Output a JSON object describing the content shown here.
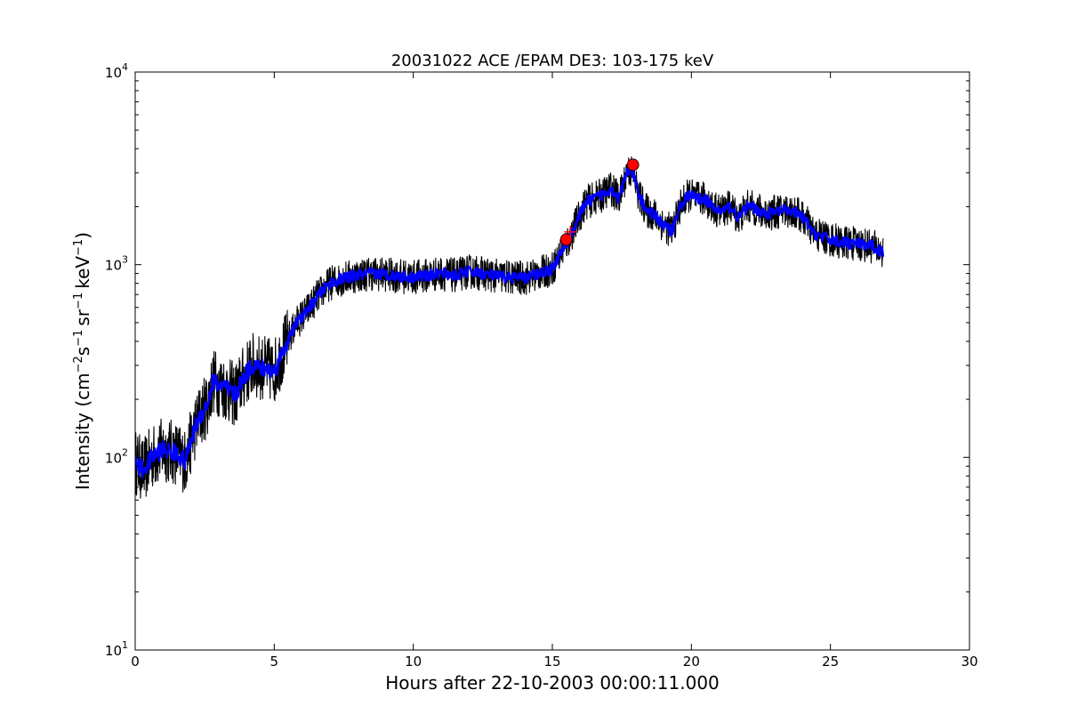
{
  "chart_data": {
    "type": "line",
    "title": "20031022 ACE /EPAM DE3: 103-175 keV",
    "xlabel": "Hours after 22-10-2003 00:00:11.000",
    "ylabel": {
      "prefix": "Intensity (cm",
      "sup1": "−2",
      "mid1": "s",
      "sup2": "−1",
      "mid2": "sr",
      "sup3": "−1",
      "mid3": "keV",
      "sup4": "−1",
      "suffix": ")"
    },
    "xlim": [
      0,
      30
    ],
    "ylim": [
      10,
      10000
    ],
    "yscale": "log",
    "grid": false,
    "x_ticks": [
      0,
      5,
      10,
      15,
      20,
      25,
      30
    ],
    "x_tick_labels": [
      "0",
      "5",
      "10",
      "15",
      "20",
      "25",
      "30"
    ],
    "y_ticks": [
      10,
      100,
      1000,
      10000
    ],
    "y_tick_labels": [
      {
        "base": "10",
        "exp": "1"
      },
      {
        "base": "10",
        "exp": "2"
      },
      {
        "base": "10",
        "exp": "3"
      },
      {
        "base": "10",
        "exp": "4"
      }
    ],
    "series": [
      {
        "role": "raw intensity",
        "color": "#000000",
        "noise": 0.09,
        "x": [
          0,
          0.3,
          0.6,
          1.0,
          1.5,
          1.8,
          2.0,
          2.2,
          2.4,
          2.6,
          2.8,
          3.2,
          3.6,
          3.9,
          4.2,
          4.6,
          5.0,
          5.4,
          5.8,
          6.2,
          6.6,
          7.0,
          7.5,
          8.0,
          8.5,
          9.0,
          9.5,
          10.0,
          10.5,
          11.0,
          11.5,
          12.0,
          12.5,
          13.0,
          13.5,
          14.0,
          14.5,
          15.0,
          15.3,
          15.6,
          15.9,
          16.2,
          16.5,
          16.8,
          17.1,
          17.4,
          17.7,
          17.9,
          18.1,
          18.4,
          18.7,
          19.0,
          19.3,
          19.6,
          19.9,
          20.2,
          20.5,
          20.8,
          21.1,
          21.4,
          21.7,
          22.0,
          22.3,
          22.6,
          22.9,
          23.2,
          23.5,
          23.8,
          24.1,
          24.4,
          24.7,
          25.0,
          25.5,
          26.0,
          26.5,
          26.9
        ],
        "y": [
          95,
          85,
          100,
          110,
          105,
          95,
          120,
          150,
          170,
          190,
          250,
          230,
          210,
          260,
          300,
          290,
          280,
          380,
          500,
          580,
          700,
          800,
          850,
          880,
          900,
          890,
          870,
          860,
          880,
          900,
          880,
          920,
          900,
          870,
          860,
          850,
          900,
          950,
          1150,
          1350,
          1700,
          2100,
          2200,
          2300,
          2500,
          2200,
          3100,
          3000,
          2300,
          1900,
          1800,
          1600,
          1500,
          2000,
          2300,
          2200,
          2200,
          1950,
          1900,
          2000,
          1750,
          2000,
          1950,
          1850,
          1850,
          1900,
          1900,
          1850,
          1700,
          1450,
          1400,
          1350,
          1300,
          1280,
          1250,
          1150
        ]
      },
      {
        "role": "smoothed intensity",
        "color": "#0000ff",
        "noise": 0.03,
        "x": [
          0,
          0.3,
          0.6,
          1.0,
          1.5,
          1.8,
          2.0,
          2.2,
          2.4,
          2.6,
          2.8,
          3.2,
          3.6,
          3.9,
          4.2,
          4.6,
          5.0,
          5.4,
          5.8,
          6.2,
          6.6,
          7.0,
          7.5,
          8.0,
          8.5,
          9.0,
          9.5,
          10.0,
          10.5,
          11.0,
          11.5,
          12.0,
          12.5,
          13.0,
          13.5,
          14.0,
          14.5,
          15.0,
          15.3,
          15.6,
          15.9,
          16.2,
          16.5,
          16.8,
          17.1,
          17.4,
          17.7,
          17.9,
          18.1,
          18.4,
          18.7,
          19.0,
          19.3,
          19.6,
          19.9,
          20.2,
          20.5,
          20.8,
          21.1,
          21.4,
          21.7,
          22.0,
          22.3,
          22.6,
          22.9,
          23.2,
          23.5,
          23.8,
          24.1,
          24.4,
          24.7,
          25.0,
          25.5,
          26.0,
          26.5,
          26.9
        ],
        "y": [
          95,
          85,
          100,
          110,
          105,
          95,
          120,
          150,
          170,
          190,
          250,
          230,
          210,
          260,
          300,
          290,
          280,
          380,
          500,
          580,
          700,
          800,
          850,
          880,
          900,
          890,
          870,
          860,
          880,
          900,
          880,
          920,
          900,
          870,
          860,
          850,
          900,
          950,
          1150,
          1350,
          1700,
          2100,
          2200,
          2300,
          2500,
          2200,
          3100,
          3000,
          2300,
          1900,
          1800,
          1600,
          1500,
          2000,
          2300,
          2200,
          2200,
          1950,
          1900,
          2000,
          1750,
          2000,
          1950,
          1850,
          1850,
          1900,
          1900,
          1850,
          1700,
          1450,
          1400,
          1350,
          1300,
          1280,
          1250,
          1150
        ]
      }
    ],
    "markers": [
      {
        "type": "circle",
        "x": 17.9,
        "y": 3300,
        "color": "#ff0000"
      },
      {
        "type": "circle",
        "x": 15.5,
        "y": 1350,
        "color": "#ff0000"
      },
      {
        "type": "plus",
        "x": 15.65,
        "y": 1480,
        "color": "#ff0000"
      }
    ]
  }
}
